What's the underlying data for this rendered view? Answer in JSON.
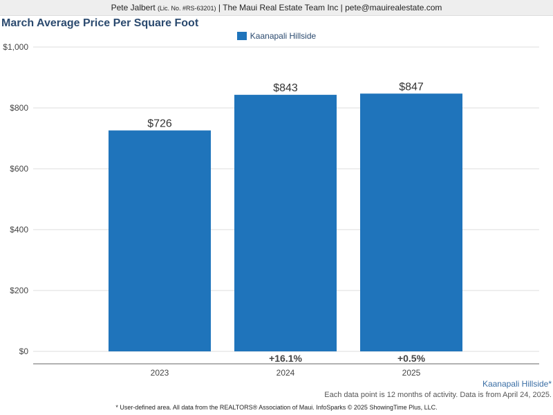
{
  "header": {
    "agent_name": "Pete Jalbert",
    "license": "(Lic. No. #RS-63201)",
    "rest": "| The Maui Real Estate Team Inc | pete@mauirealestate.com"
  },
  "colors": {
    "bar": "#1f74bb",
    "title": "#2b4a6f"
  },
  "chart_data": {
    "type": "bar",
    "title": "March Average Price Per Square Foot",
    "categories": [
      "2023",
      "2024",
      "2025"
    ],
    "series": [
      {
        "name": "Kaanapali Hillside",
        "values": [
          726,
          843,
          847
        ]
      }
    ],
    "value_labels": [
      "$726",
      "$843",
      "$847"
    ],
    "change_labels": [
      "",
      "+16.1%",
      "+0.5%"
    ],
    "y_ticks": [
      {
        "value": 0,
        "label": "$0"
      },
      {
        "value": 200,
        "label": "$200"
      },
      {
        "value": 400,
        "label": "$400"
      },
      {
        "value": 600,
        "label": "$600"
      },
      {
        "value": 800,
        "label": "$800"
      },
      {
        "value": 1000,
        "label": "$1,000"
      }
    ],
    "ylim": [
      0,
      1000
    ],
    "grid": true,
    "legend_position": "top-center"
  },
  "footer": {
    "area_label": "Kaanapali Hillside*",
    "note": "Each data point is 12 months of activity. Data is from April 24, 2025.",
    "disclaimer": "* User-defined area. All data from the REALTORS® Association of Maui. InfoSparks © 2025 ShowingTime Plus, LLC."
  }
}
